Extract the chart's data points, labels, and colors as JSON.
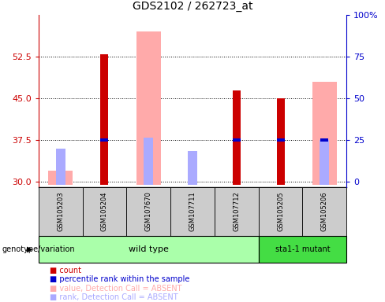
{
  "title": "GDS2102 / 262723_at",
  "samples": [
    "GSM105203",
    "GSM105204",
    "GSM107670",
    "GSM107711",
    "GSM107712",
    "GSM105205",
    "GSM105206"
  ],
  "ylim_left": [
    29,
    60
  ],
  "yticks_left": [
    30,
    37.5,
    45,
    52.5
  ],
  "yticks_right_labels": [
    "0",
    "25",
    "50",
    "75",
    "100%"
  ],
  "yticks_right_vals": [
    30,
    37.5,
    45,
    52.5,
    60
  ],
  "count_values": [
    null,
    53.0,
    null,
    null,
    46.5,
    45.0,
    null
  ],
  "rank_values": [
    null,
    37.5,
    null,
    null,
    37.5,
    37.5,
    37.5
  ],
  "pink_value_values": [
    32.0,
    null,
    57.0,
    null,
    null,
    null,
    48.0
  ],
  "pink_rank_values": [
    36.0,
    null,
    38.0,
    35.5,
    null,
    null,
    37.5
  ],
  "color_count": "#cc0000",
  "color_rank": "#0000cc",
  "color_pink_value": "#ffaaaa",
  "color_pink_rank": "#aaaaff",
  "color_wild_type_bg": "#aaffaa",
  "color_mutant_bg": "#44dd44",
  "color_sample_bg": "#cccccc",
  "baseline": 29.5,
  "wild_type_count": 5,
  "total_samples": 7
}
